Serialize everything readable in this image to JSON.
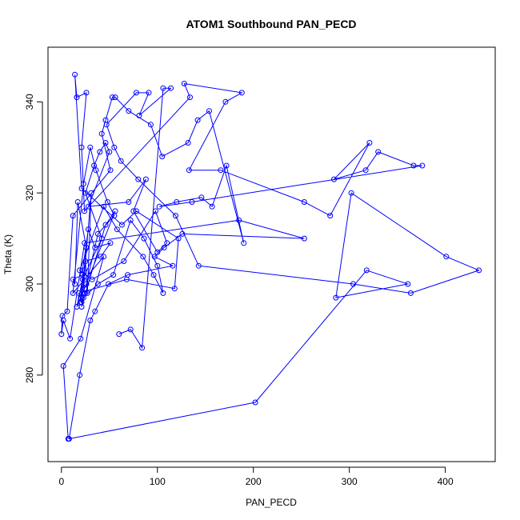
{
  "chart_data": {
    "type": "line",
    "title": "ATOM1 Southbound PAN_PECD",
    "xlabel": "PAN_PECD",
    "ylabel": "Theta (K)",
    "xlim": [
      -14,
      452
    ],
    "ylim": [
      261,
      352
    ],
    "xticks": [
      0,
      100,
      200,
      300,
      400
    ],
    "yticks": [
      280,
      300,
      320,
      340
    ],
    "grid": false,
    "legend": "none",
    "colors": {
      "series": "#0000ff",
      "axis": "#000000"
    },
    "series": [
      {
        "markers": "open-circle",
        "x": [
          7,
          2,
          20,
          44,
          12,
          23,
          30,
          36,
          48,
          55,
          38,
          26,
          16,
          22,
          42,
          25,
          34,
          40,
          46,
          50,
          28,
          70,
          88,
          75,
          100,
          110,
          98,
          65,
          32,
          19,
          44,
          58,
          85,
          96,
          106,
          100,
          86,
          72,
          54,
          38,
          23,
          20,
          26,
          17,
          14,
          12,
          22,
          20,
          24,
          56,
          46,
          21,
          31,
          27,
          25,
          41,
          51,
          35,
          28,
          22,
          24,
          21,
          18,
          68,
          118,
          122,
          78,
          63,
          21,
          14,
          16,
          26,
          21,
          24,
          134,
          128,
          188,
          171,
          133,
          166,
          253,
          280,
          321,
          284,
          317,
          330,
          367,
          376,
          136,
          102,
          120,
          146,
          157,
          172,
          190,
          154,
          142,
          132,
          105,
          93,
          70,
          56,
          53,
          46,
          42,
          51,
          12,
          6,
          1,
          0,
          2,
          9,
          24,
          185,
          253,
          126,
          107,
          97,
          116,
          69,
          49,
          35,
          30,
          19,
          8,
          202,
          318,
          361,
          286,
          302,
          401,
          435,
          364,
          304,
          143,
          119,
          80,
          62,
          55,
          47,
          78,
          91,
          81,
          114,
          106,
          84,
          72,
          60
        ],
        "y": [
          266,
          282,
          288,
          306,
          298,
          322,
          330,
          325,
          318,
          315,
          311,
          300,
          295,
          301,
          310,
          320,
          326,
          329,
          331,
          329,
          317,
          318,
          323,
          316,
          307,
          309,
          316,
          305,
          301,
          303,
          317,
          312,
          306,
          302,
          298,
          304,
          310,
          314,
          302,
          300,
          297,
          296,
          308,
          318,
          300,
          301,
          302,
          297,
          299,
          316,
          313,
          295,
          320,
          298,
          305,
          306,
          309,
          308,
          312,
          303,
          298,
          296,
          298,
          301,
          299,
          310,
          316,
          313,
          321,
          346,
          341,
          342,
          330,
          316,
          341,
          344,
          342,
          340,
          325,
          325,
          318,
          315,
          331,
          323,
          325,
          329,
          326,
          326,
          318,
          317,
          318,
          319,
          317,
          326,
          309,
          338,
          336,
          331,
          328,
          335,
          338,
          341,
          341,
          336,
          333,
          325,
          315,
          294,
          293,
          289,
          292,
          288,
          309,
          314,
          310,
          311,
          308,
          306,
          304,
          302,
          300,
          294,
          292,
          280,
          266,
          274,
          303,
          300,
          297,
          320,
          306,
          303,
          298,
          300,
          304,
          315,
          323,
          327,
          330,
          335,
          342,
          342,
          337,
          343,
          343,
          286,
          290,
          289
        ]
      }
    ]
  }
}
